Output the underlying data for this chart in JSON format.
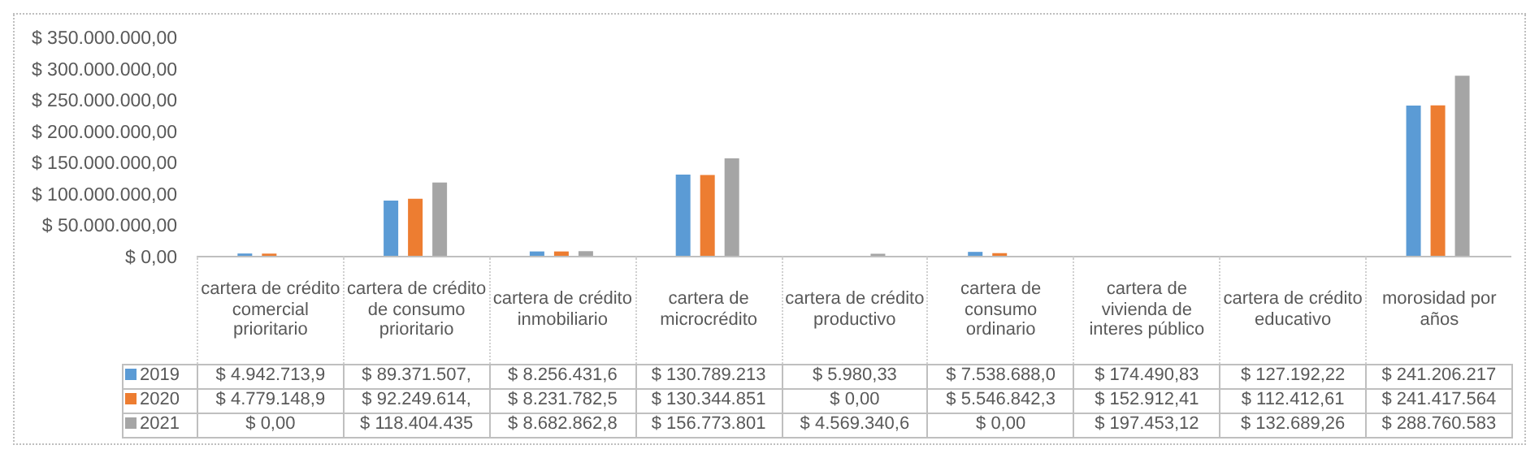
{
  "chart_data": {
    "type": "bar",
    "categories": [
      "cartera de crédito comercial prioritario",
      "cartera de crédito de consumo prioritario",
      "cartera de crédito inmobiliario",
      "cartera de microcrédito",
      "cartera de crédito productivo",
      "cartera de consumo ordinario",
      "cartera de vivienda de interes público",
      "cartera de crédito educativo",
      "morosidad por años"
    ],
    "series": [
      {
        "name": "2019",
        "color": "#5b9bd5",
        "values": [
          4942713.9,
          89371507,
          8256431.6,
          130789213,
          5980.33,
          7538688.0,
          174490.83,
          127192.22,
          241206217
        ],
        "value_labels": [
          "$ 4.942.713,9",
          "$ 89.371.507,",
          "$ 8.256.431,6",
          "$ 130.789.213",
          "$ 5.980,33",
          "$ 7.538.688,0",
          "$ 174.490,83",
          "$ 127.192,22",
          "$ 241.206.217"
        ]
      },
      {
        "name": "2020",
        "color": "#ed7d31",
        "values": [
          4779148.9,
          92249614,
          8231782.5,
          130344851,
          0,
          5546842.3,
          152912.41,
          112412.61,
          241417564
        ],
        "value_labels": [
          "$ 4.779.148,9",
          "$ 92.249.614,",
          "$ 8.231.782,5",
          "$ 130.344.851",
          "$ 0,00",
          "$ 5.546.842,3",
          "$ 152.912,41",
          "$ 112.412,61",
          "$ 241.417.564"
        ]
      },
      {
        "name": "2021",
        "color": "#a5a5a5",
        "values": [
          0,
          118404435,
          8682862.8,
          156773801,
          4569340.6,
          0,
          197453.12,
          132689.26,
          288760583
        ],
        "value_labels": [
          "$ 0,00",
          "$ 118.404.435",
          "$ 8.682.862,8",
          "$ 156.773.801",
          "$ 4.569.340,6",
          "$ 0,00",
          "$ 197.453,12",
          "$ 132.689,26",
          "$ 288.760.583"
        ]
      }
    ],
    "ylim": [
      0,
      350000000
    ],
    "yticks": [
      {
        "value": 0,
        "label": "$ 0,00"
      },
      {
        "value": 50000000,
        "label": "$ 50.000.000,00"
      },
      {
        "value": 100000000,
        "label": "$ 100.000.000,00"
      },
      {
        "value": 150000000,
        "label": "$ 150.000.000,00"
      },
      {
        "value": 200000000,
        "label": "$ 200.000.000,00"
      },
      {
        "value": 250000000,
        "label": "$ 250.000.000,00"
      },
      {
        "value": 300000000,
        "label": "$ 300.000.000,00"
      },
      {
        "value": 350000000,
        "label": "$ 350.000.000,00"
      }
    ],
    "grid": false,
    "legend": "bottom"
  }
}
